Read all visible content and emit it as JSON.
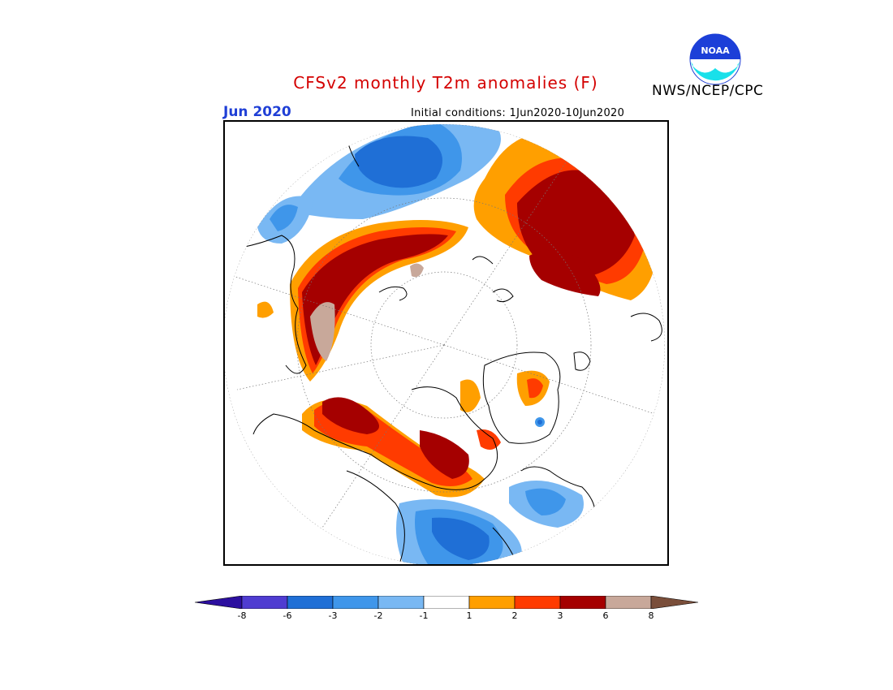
{
  "header": {
    "title": "CFSv2 monthly T2m anomalies (F)",
    "period": "Jun 2020",
    "initial_conditions": "Initial conditions: 1Jun2020-10Jun2020",
    "agency": "NWS/NCEP/CPC",
    "logo_text": "NOAA"
  },
  "colorbar": {
    "tick_labels": [
      "-8",
      "-6",
      "-3",
      "-2",
      "-1",
      "1",
      "2",
      "3",
      "6",
      "8"
    ],
    "colors": [
      "#2c0f9f",
      "#4f3cd1",
      "#1f6fd6",
      "#3f96ea",
      "#79b8f3",
      "#ffffff",
      "#ff9f00",
      "#ff3b00",
      "#a50000",
      "#c8a89a",
      "#7a4e3a"
    ]
  },
  "map": {
    "projection": "north polar stereographic",
    "colors": {
      "dark_blue": "#1f6fd6",
      "mid_blue": "#3f96ea",
      "light_blue": "#79b8f3",
      "orange": "#ff9f00",
      "red_orange": "#ff3b00",
      "dark_red": "#a50000",
      "tan": "#c8a89a"
    }
  }
}
